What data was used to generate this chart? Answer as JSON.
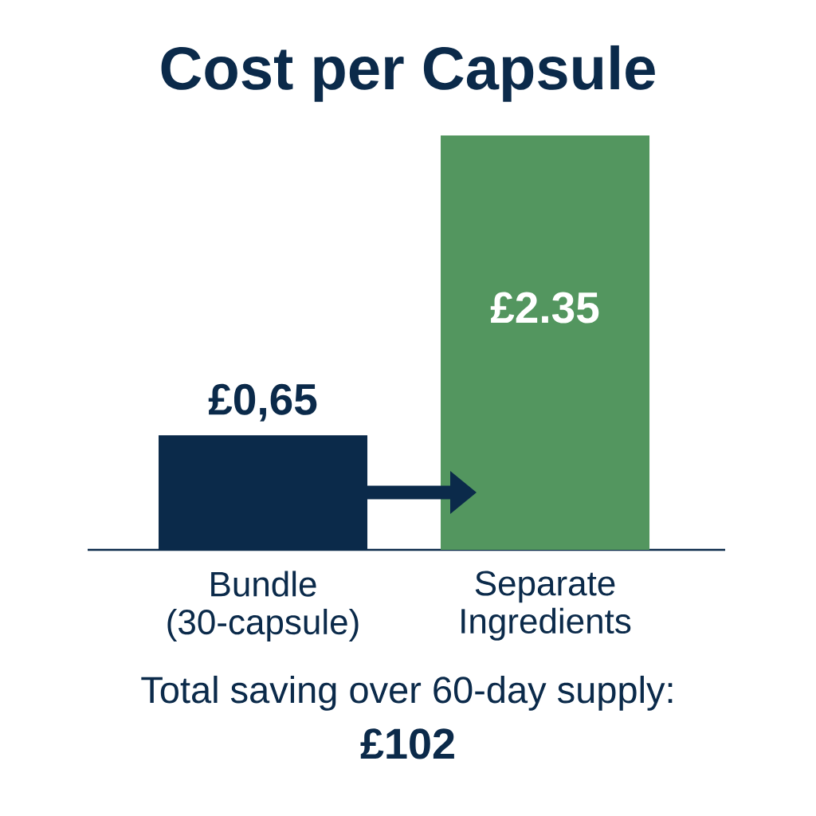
{
  "chart_data": {
    "type": "bar",
    "title": "Cost per Capsule",
    "categories": [
      "Bundle (30-capsule)",
      "Separate Ingredients"
    ],
    "values": [
      0.65,
      2.35
    ],
    "colors": [
      "#0b2a4a",
      "#53965f"
    ],
    "value_labels": [
      "£0,65",
      "£2.35"
    ],
    "annotations": [
      "Total saving over 60-day supply:",
      "£102"
    ]
  }
}
